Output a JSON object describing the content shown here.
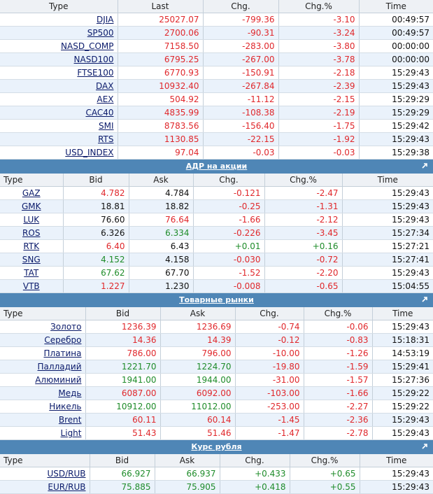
{
  "indices": {
    "headers": [
      "Type",
      "Last",
      "Chg.",
      "Chg.%",
      "Time"
    ],
    "rows": [
      {
        "type": "DJIA",
        "last": "25027.07",
        "chg": "-799.36",
        "pct": "-3.10",
        "time": "00:49:57"
      },
      {
        "type": "SP500",
        "last": "2700.06",
        "chg": "-90.31",
        "pct": "-3.24",
        "time": "00:49:57"
      },
      {
        "type": "NASD_COMP",
        "last": "7158.50",
        "chg": "-283.00",
        "pct": "-3.80",
        "time": "00:00:00"
      },
      {
        "type": "NASD100",
        "last": "6795.25",
        "chg": "-267.00",
        "pct": "-3.78",
        "time": "00:00:00"
      },
      {
        "type": "FTSE100",
        "last": "6770.93",
        "chg": "-150.91",
        "pct": "-2.18",
        "time": "15:29:43"
      },
      {
        "type": "DAX",
        "last": "10932.40",
        "chg": "-267.84",
        "pct": "-2.39",
        "time": "15:29:43"
      },
      {
        "type": "AEX",
        "last": "504.92",
        "chg": "-11.12",
        "pct": "-2.15",
        "time": "15:29:29"
      },
      {
        "type": "CAC40",
        "last": "4835.99",
        "chg": "-108.38",
        "pct": "-2.19",
        "time": "15:29:29"
      },
      {
        "type": "SMI",
        "last": "8783.56",
        "chg": "-156.40",
        "pct": "-1.75",
        "time": "15:29:42"
      },
      {
        "type": "RTS",
        "last": "1130.85",
        "chg": "-22.15",
        "pct": "-1.92",
        "time": "15:29:43"
      },
      {
        "type": "USD_INDEX",
        "last": "97.04",
        "chg": "-0.03",
        "pct": "-0.03",
        "time": "15:29:38"
      }
    ]
  },
  "adr": {
    "title": "АДР на акции",
    "headers": [
      "Type",
      "Bid",
      "Ask",
      "Chg.",
      "Chg.%",
      "Time"
    ],
    "rows": [
      {
        "type": "GAZ",
        "bid": "4.782",
        "bidc": "red",
        "ask": "4.784",
        "askc": "black",
        "chg": "-0.121",
        "chgc": "red",
        "pct": "-2.47",
        "pctc": "red",
        "time": "15:29:43"
      },
      {
        "type": "GMK",
        "bid": "18.81",
        "bidc": "black",
        "ask": "18.82",
        "askc": "black",
        "chg": "-0.25",
        "chgc": "red",
        "pct": "-1.31",
        "pctc": "red",
        "time": "15:29:43"
      },
      {
        "type": "LUK",
        "bid": "76.60",
        "bidc": "black",
        "ask": "76.64",
        "askc": "red",
        "chg": "-1.66",
        "chgc": "red",
        "pct": "-2.12",
        "pctc": "red",
        "time": "15:29:43"
      },
      {
        "type": "ROS",
        "bid": "6.326",
        "bidc": "black",
        "ask": "6.334",
        "askc": "green",
        "chg": "-0.226",
        "chgc": "red",
        "pct": "-3.45",
        "pctc": "red",
        "time": "15:27:34"
      },
      {
        "type": "RTK",
        "bid": "6.40",
        "bidc": "red",
        "ask": "6.43",
        "askc": "black",
        "chg": "+0.01",
        "chgc": "green",
        "pct": "+0.16",
        "pctc": "green",
        "time": "15:27:21"
      },
      {
        "type": "SNG",
        "bid": "4.152",
        "bidc": "green",
        "ask": "4.158",
        "askc": "black",
        "chg": "-0.030",
        "chgc": "red",
        "pct": "-0.72",
        "pctc": "red",
        "time": "15:27:41"
      },
      {
        "type": "TAT",
        "bid": "67.62",
        "bidc": "green",
        "ask": "67.70",
        "askc": "black",
        "chg": "-1.52",
        "chgc": "red",
        "pct": "-2.20",
        "pctc": "red",
        "time": "15:29:43"
      },
      {
        "type": "VTB",
        "bid": "1.227",
        "bidc": "red",
        "ask": "1.230",
        "askc": "black",
        "chg": "-0.008",
        "chgc": "red",
        "pct": "-0.65",
        "pctc": "red",
        "time": "15:04:55"
      }
    ]
  },
  "commodities": {
    "title": "Товарные рынки",
    "headers": [
      "Type",
      "Bid",
      "Ask",
      "Chg.",
      "Chg.%",
      "Time"
    ],
    "rows": [
      {
        "type": "Золото",
        "bid": "1236.39",
        "bidc": "red",
        "ask": "1236.69",
        "askc": "red",
        "chg": "-0.74",
        "chgc": "red",
        "pct": "-0.06",
        "pctc": "red",
        "time": "15:29:43"
      },
      {
        "type": "Серебро",
        "bid": "14.36",
        "bidc": "red",
        "ask": "14.39",
        "askc": "red",
        "chg": "-0.12",
        "chgc": "red",
        "pct": "-0.83",
        "pctc": "red",
        "time": "15:18:31"
      },
      {
        "type": "Платина",
        "bid": "786.00",
        "bidc": "red",
        "ask": "796.00",
        "askc": "red",
        "chg": "-10.00",
        "chgc": "red",
        "pct": "-1.26",
        "pctc": "red",
        "time": "14:53:19"
      },
      {
        "type": "Палладий",
        "bid": "1221.70",
        "bidc": "green",
        "ask": "1224.70",
        "askc": "green",
        "chg": "-19.80",
        "chgc": "red",
        "pct": "-1.59",
        "pctc": "red",
        "time": "15:29:41"
      },
      {
        "type": "Алюминий",
        "bid": "1941.00",
        "bidc": "green",
        "ask": "1944.00",
        "askc": "green",
        "chg": "-31.00",
        "chgc": "red",
        "pct": "-1.57",
        "pctc": "red",
        "time": "15:27:36"
      },
      {
        "type": "Медь",
        "bid": "6087.00",
        "bidc": "red",
        "ask": "6092.00",
        "askc": "red",
        "chg": "-103.00",
        "chgc": "red",
        "pct": "-1.66",
        "pctc": "red",
        "time": "15:29:22"
      },
      {
        "type": "Никель",
        "bid": "10912.00",
        "bidc": "green",
        "ask": "11012.00",
        "askc": "green",
        "chg": "-253.00",
        "chgc": "red",
        "pct": "-2.27",
        "pctc": "red",
        "time": "15:29:22"
      },
      {
        "type": "Brent",
        "bid": "60.11",
        "bidc": "red",
        "ask": "60.14",
        "askc": "red",
        "chg": "-1.45",
        "chgc": "red",
        "pct": "-2.36",
        "pctc": "red",
        "time": "15:29:43"
      },
      {
        "type": "Light",
        "bid": "51.43",
        "bidc": "red",
        "ask": "51.46",
        "askc": "red",
        "chg": "-1.47",
        "chgc": "red",
        "pct": "-2.78",
        "pctc": "red",
        "time": "15:29:43"
      }
    ]
  },
  "ruble": {
    "title": "Курс рубля",
    "headers": [
      "Type",
      "Bid",
      "Ask",
      "Chg.",
      "Chg.%",
      "Time"
    ],
    "rows": [
      {
        "type": "USD/RUB",
        "bid": "66.927",
        "bidc": "green",
        "ask": "66.937",
        "askc": "green",
        "chg": "+0.433",
        "chgc": "green",
        "pct": "+0.65",
        "pctc": "green",
        "time": "15:29:43"
      },
      {
        "type": "EUR/RUB",
        "bid": "75.885",
        "bidc": "green",
        "ask": "75.905",
        "askc": "green",
        "chg": "+0.418",
        "chgc": "green",
        "pct": "+0.55",
        "pctc": "green",
        "time": "15:29:43"
      }
    ]
  },
  "colors": {
    "down": "#e0282c",
    "up": "#1f8c2a",
    "section_bar": "#4f86b6",
    "row_alt": "#eaf2fb"
  },
  "icons": {
    "section_expand": "external-link-icon"
  }
}
